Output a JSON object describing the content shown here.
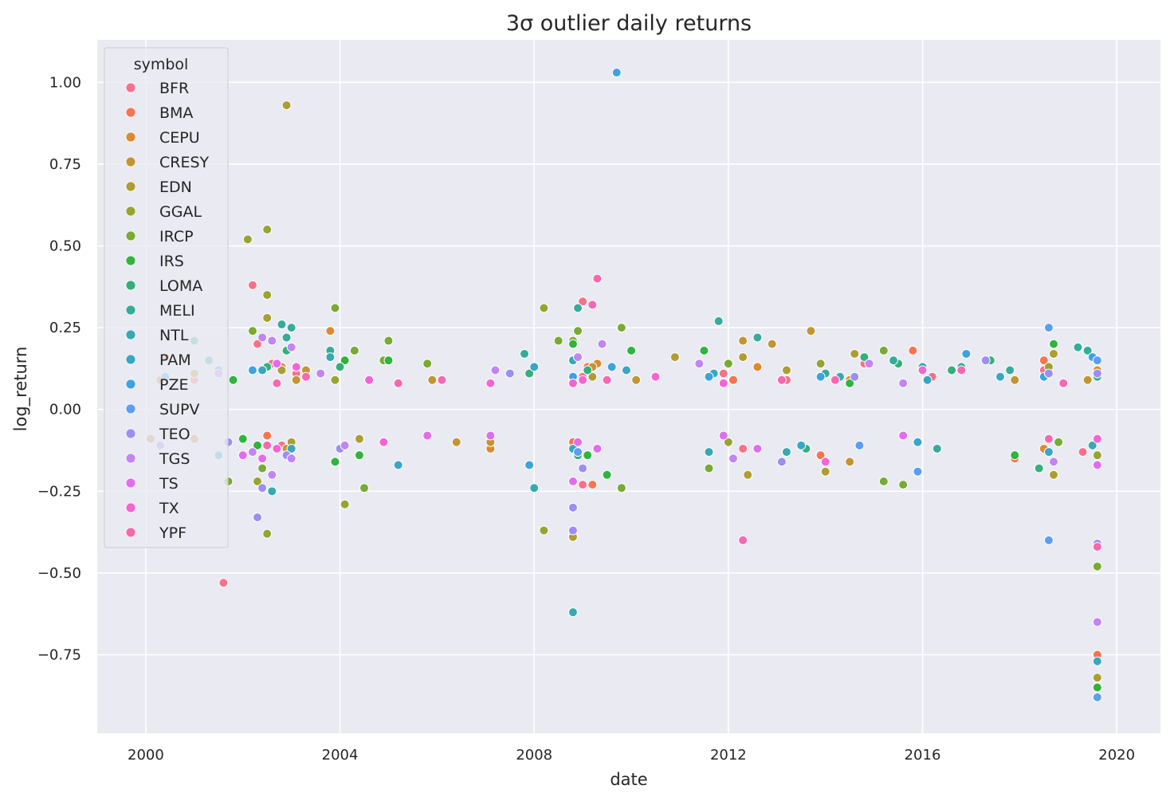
{
  "chart_data": {
    "type": "scatter",
    "title": "3σ outlier daily returns",
    "xlabel": "date",
    "ylabel": "log_return",
    "xlim": [
      1999.0,
      2020.9
    ],
    "ylim": [
      -0.99,
      1.13
    ],
    "x_ticks": [
      2000,
      2004,
      2008,
      2012,
      2016,
      2020
    ],
    "x_tick_labels": [
      "2000",
      "2004",
      "2008",
      "2012",
      "2016",
      "2020"
    ],
    "y_ticks": [
      -0.75,
      -0.5,
      -0.25,
      0.0,
      0.25,
      0.5,
      0.75,
      1.0
    ],
    "y_tick_labels": [
      "−0.75",
      "−0.50",
      "−0.25",
      "0.00",
      "0.25",
      "0.50",
      "0.75",
      "1.00"
    ],
    "grid": true,
    "legend": {
      "title": "symbol",
      "placement": "top-left"
    },
    "series": [
      {
        "name": "BFR",
        "color": "#f77189",
        "points": [
          [
            2001.6,
            -0.53
          ],
          [
            2002.2,
            0.38
          ],
          [
            2002.3,
            0.2
          ],
          [
            2002.6,
            0.14
          ],
          [
            2002.8,
            -0.11
          ],
          [
            2003.1,
            0.11
          ],
          [
            2009.0,
            0.33
          ],
          [
            2009.0,
            0.1
          ],
          [
            2009.0,
            -0.23
          ],
          [
            2011.9,
            0.11
          ],
          [
            2012.3,
            -0.12
          ],
          [
            2013.2,
            0.09
          ],
          [
            2014.8,
            0.14
          ],
          [
            2016.2,
            0.1
          ],
          [
            2018.5,
            0.12
          ],
          [
            2019.3,
            -0.13
          ]
        ]
      },
      {
        "name": "BMA",
        "color": "#f7754f",
        "points": [
          [
            2001.0,
            0.09
          ],
          [
            2002.5,
            -0.08
          ],
          [
            2008.8,
            -0.1
          ],
          [
            2009.1,
            0.13
          ],
          [
            2009.2,
            -0.23
          ],
          [
            2012.1,
            0.09
          ],
          [
            2013.9,
            -0.14
          ],
          [
            2015.8,
            0.18
          ],
          [
            2017.9,
            -0.15
          ],
          [
            2018.5,
            0.15
          ],
          [
            2019.6,
            -0.75
          ]
        ]
      },
      {
        "name": "CEPU",
        "color": "#dc8932",
        "points": [
          [
            2000.4,
            0.16
          ],
          [
            2001.0,
            -0.09
          ],
          [
            2002.8,
            0.13
          ],
          [
            2003.8,
            0.24
          ],
          [
            2007.1,
            -0.12
          ],
          [
            2008.8,
            -0.38
          ],
          [
            2009.3,
            0.14
          ],
          [
            2012.6,
            0.13
          ],
          [
            2014.5,
            0.09
          ],
          [
            2018.5,
            -0.12
          ],
          [
            2019.6,
            0.12
          ]
        ]
      },
      {
        "name": "CRESY",
        "color": "#c39532",
        "points": [
          [
            2000.1,
            -0.09
          ],
          [
            2000.3,
            0.09
          ],
          [
            2001.0,
            0.11
          ],
          [
            2002.9,
            -0.12
          ],
          [
            2003.1,
            0.09
          ],
          [
            2003.3,
            0.12
          ],
          [
            2003.9,
            0.09
          ],
          [
            2005.9,
            0.09
          ],
          [
            2006.4,
            -0.1
          ],
          [
            2007.1,
            -0.1
          ],
          [
            2009.2,
            0.13
          ],
          [
            2010.1,
            0.09
          ],
          [
            2012.3,
            0.21
          ],
          [
            2012.9,
            0.2
          ],
          [
            2013.7,
            0.24
          ],
          [
            2014.5,
            -0.16
          ],
          [
            2017.9,
            0.09
          ],
          [
            2019.4,
            0.09
          ]
        ]
      },
      {
        "name": "EDN",
        "color": "#ae9d31",
        "points": [
          [
            2002.9,
            0.93
          ],
          [
            2002.5,
            0.28
          ],
          [
            2002.8,
            0.12
          ],
          [
            2003.0,
            -0.1
          ],
          [
            2004.4,
            -0.09
          ],
          [
            2008.8,
            -0.39
          ],
          [
            2008.8,
            0.09
          ],
          [
            2009.2,
            0.1
          ],
          [
            2010.9,
            0.16
          ],
          [
            2012.3,
            0.16
          ],
          [
            2012.4,
            -0.2
          ],
          [
            2013.2,
            0.12
          ],
          [
            2014.0,
            -0.19
          ],
          [
            2014.6,
            0.17
          ],
          [
            2018.7,
            0.17
          ],
          [
            2018.7,
            -0.2
          ],
          [
            2019.6,
            -0.82
          ]
        ]
      },
      {
        "name": "GGAL",
        "color": "#97a431",
        "points": [
          [
            2002.1,
            0.52
          ],
          [
            2002.5,
            0.55
          ],
          [
            2002.5,
            0.35
          ],
          [
            2002.3,
            -0.22
          ],
          [
            2002.5,
            -0.38
          ],
          [
            2003.9,
            0.09
          ],
          [
            2004.1,
            -0.29
          ],
          [
            2008.2,
            0.31
          ],
          [
            2008.2,
            -0.37
          ],
          [
            2008.8,
            -0.3
          ],
          [
            2008.8,
            0.21
          ],
          [
            2012.0,
            -0.1
          ],
          [
            2013.9,
            0.14
          ],
          [
            2018.6,
            0.13
          ],
          [
            2019.6,
            -0.14
          ]
        ]
      },
      {
        "name": "IRCP",
        "color": "#77ab31",
        "points": [
          [
            2001.7,
            -0.22
          ],
          [
            2002.2,
            0.24
          ],
          [
            2002.4,
            -0.18
          ],
          [
            2003.9,
            0.31
          ],
          [
            2004.3,
            0.18
          ],
          [
            2004.5,
            -0.24
          ],
          [
            2004.9,
            0.15
          ],
          [
            2005.0,
            0.21
          ],
          [
            2005.8,
            0.14
          ],
          [
            2008.5,
            0.21
          ],
          [
            2008.9,
            0.24
          ],
          [
            2009.8,
            0.25
          ],
          [
            2009.8,
            -0.24
          ],
          [
            2011.6,
            -0.18
          ],
          [
            2012.0,
            0.14
          ],
          [
            2015.2,
            0.18
          ],
          [
            2015.2,
            -0.22
          ],
          [
            2015.6,
            -0.23
          ],
          [
            2018.8,
            -0.1
          ],
          [
            2019.6,
            -0.48
          ]
        ]
      },
      {
        "name": "IRS",
        "color": "#31b33e",
        "points": [
          [
            2001.8,
            0.09
          ],
          [
            2002.0,
            -0.09
          ],
          [
            2002.3,
            -0.11
          ],
          [
            2003.9,
            -0.16
          ],
          [
            2004.1,
            0.15
          ],
          [
            2004.4,
            -0.14
          ],
          [
            2005.0,
            0.15
          ],
          [
            2008.8,
            0.2
          ],
          [
            2009.1,
            -0.14
          ],
          [
            2009.5,
            -0.2
          ],
          [
            2010.0,
            0.18
          ],
          [
            2011.5,
            0.18
          ],
          [
            2014.5,
            0.08
          ],
          [
            2017.9,
            -0.14
          ],
          [
            2018.7,
            0.2
          ],
          [
            2019.6,
            -0.85
          ]
        ]
      },
      {
        "name": "LOMA",
        "color": "#33b07a",
        "points": [
          [
            2002.5,
            0.13
          ],
          [
            2002.9,
            0.18
          ],
          [
            2003.1,
            0.13
          ],
          [
            2004.0,
            0.13
          ],
          [
            2007.9,
            0.11
          ],
          [
            2008.8,
            0.15
          ],
          [
            2008.9,
            -0.14
          ],
          [
            2009.1,
            0.12
          ],
          [
            2013.6,
            -0.12
          ],
          [
            2014.8,
            0.16
          ],
          [
            2015.5,
            0.14
          ],
          [
            2016.6,
            0.12
          ],
          [
            2017.4,
            0.15
          ],
          [
            2018.4,
            -0.18
          ],
          [
            2019.6,
            0.1
          ]
        ]
      },
      {
        "name": "MELI",
        "color": "#35ac9a",
        "points": [
          [
            2002.8,
            0.26
          ],
          [
            2002.9,
            0.22
          ],
          [
            2003.0,
            0.25
          ],
          [
            2003.8,
            0.18
          ],
          [
            2007.8,
            0.17
          ],
          [
            2008.9,
            0.31
          ],
          [
            2011.8,
            0.27
          ],
          [
            2012.6,
            0.22
          ],
          [
            2014.0,
            0.11
          ],
          [
            2015.4,
            0.15
          ],
          [
            2016.3,
            -0.12
          ],
          [
            2016.8,
            0.13
          ],
          [
            2017.8,
            0.12
          ],
          [
            2019.2,
            0.19
          ],
          [
            2019.4,
            0.18
          ]
        ]
      },
      {
        "name": "NTL",
        "color": "#36a9b1",
        "points": [
          [
            2001.0,
            0.21
          ],
          [
            2001.3,
            0.15
          ],
          [
            2002.5,
            -0.11
          ],
          [
            2002.6,
            -0.25
          ],
          [
            2003.8,
            0.16
          ],
          [
            2008.0,
            -0.24
          ],
          [
            2008.8,
            -0.62
          ],
          [
            2008.8,
            0.15
          ],
          [
            2011.6,
            -0.13
          ],
          [
            2013.2,
            -0.13
          ],
          [
            2014.3,
            0.1
          ],
          [
            2016.0,
            0.13
          ],
          [
            2019.5,
            -0.11
          ]
        ]
      },
      {
        "name": "PAM",
        "color": "#38a6c5",
        "points": [
          [
            2001.5,
            0.12
          ],
          [
            2001.5,
            -0.14
          ],
          [
            2002.4,
            0.12
          ],
          [
            2003.0,
            -0.12
          ],
          [
            2005.2,
            -0.17
          ],
          [
            2008.0,
            0.13
          ],
          [
            2008.8,
            -0.12
          ],
          [
            2009.9,
            0.12
          ],
          [
            2011.7,
            0.11
          ],
          [
            2013.5,
            -0.11
          ],
          [
            2015.9,
            -0.1
          ],
          [
            2016.1,
            0.09
          ],
          [
            2017.6,
            0.1
          ],
          [
            2018.6,
            -0.13
          ],
          [
            2019.6,
            -0.77
          ]
        ]
      },
      {
        "name": "PZE",
        "color": "#3ba3e2",
        "points": [
          [
            2000.4,
            0.1
          ],
          [
            2002.2,
            0.12
          ],
          [
            2002.7,
            -0.12
          ],
          [
            2007.9,
            -0.17
          ],
          [
            2008.8,
            0.1
          ],
          [
            2009.7,
            1.03
          ],
          [
            2009.6,
            0.13
          ],
          [
            2011.6,
            0.1
          ],
          [
            2013.9,
            0.1
          ],
          [
            2016.9,
            0.17
          ],
          [
            2018.5,
            0.1
          ],
          [
            2019.5,
            0.16
          ]
        ]
      },
      {
        "name": "SUPV",
        "color": "#5b9ef4",
        "points": [
          [
            2008.9,
            -0.13
          ],
          [
            2014.7,
            -0.11
          ],
          [
            2015.9,
            -0.19
          ],
          [
            2018.6,
            0.25
          ],
          [
            2018.6,
            -0.4
          ],
          [
            2019.6,
            0.15
          ],
          [
            2019.6,
            -0.88
          ]
        ]
      },
      {
        "name": "TEO",
        "color": "#9b8ef4",
        "points": [
          [
            2000.3,
            -0.11
          ],
          [
            2001.7,
            -0.1
          ],
          [
            2002.3,
            -0.33
          ],
          [
            2002.4,
            -0.24
          ],
          [
            2002.9,
            -0.14
          ],
          [
            2004.0,
            -0.12
          ],
          [
            2007.5,
            0.11
          ],
          [
            2008.8,
            -0.37
          ],
          [
            2008.8,
            -0.3
          ],
          [
            2009.0,
            -0.18
          ],
          [
            2013.1,
            -0.16
          ],
          [
            2014.6,
            0.1
          ],
          [
            2017.3,
            0.15
          ],
          [
            2018.6,
            0.11
          ],
          [
            2019.6,
            0.11
          ],
          [
            2019.6,
            -0.41
          ]
        ]
      },
      {
        "name": "TGS",
        "color": "#c185f4",
        "points": [
          [
            2001.5,
            0.11
          ],
          [
            2002.2,
            -0.13
          ],
          [
            2002.4,
            0.22
          ],
          [
            2002.6,
            0.21
          ],
          [
            2002.6,
            -0.2
          ],
          [
            2003.0,
            0.19
          ],
          [
            2003.0,
            -0.15
          ],
          [
            2003.6,
            0.11
          ],
          [
            2004.1,
            -0.11
          ],
          [
            2007.2,
            0.12
          ],
          [
            2008.9,
            0.16
          ],
          [
            2009.4,
            0.2
          ],
          [
            2011.4,
            0.14
          ],
          [
            2012.1,
            -0.15
          ],
          [
            2014.9,
            0.14
          ],
          [
            2015.6,
            0.08
          ],
          [
            2018.7,
            -0.16
          ],
          [
            2019.6,
            -0.65
          ]
        ]
      },
      {
        "name": "TS",
        "color": "#e16dee",
        "points": [
          [
            2002.0,
            -0.14
          ],
          [
            2002.4,
            -0.15
          ],
          [
            2002.7,
            0.14
          ],
          [
            2005.8,
            -0.08
          ],
          [
            2007.1,
            -0.08
          ],
          [
            2008.8,
            -0.22
          ],
          [
            2008.9,
            -0.1
          ],
          [
            2009.3,
            -0.12
          ],
          [
            2011.9,
            -0.08
          ],
          [
            2012.6,
            -0.12
          ],
          [
            2015.6,
            -0.08
          ],
          [
            2019.6,
            -0.17
          ]
        ]
      },
      {
        "name": "TX",
        "color": "#f564d2",
        "points": [
          [
            2002.7,
            -0.12
          ],
          [
            2003.1,
            0.13
          ],
          [
            2004.6,
            0.09
          ],
          [
            2004.9,
            -0.1
          ],
          [
            2007.1,
            0.08
          ],
          [
            2008.8,
            0.08
          ],
          [
            2009.0,
            0.09
          ],
          [
            2010.5,
            0.1
          ],
          [
            2011.9,
            0.08
          ],
          [
            2014.0,
            -0.16
          ],
          [
            2016.0,
            0.12
          ],
          [
            2019.6,
            -0.09
          ]
        ]
      },
      {
        "name": "YPF",
        "color": "#f668b0",
        "points": [
          [
            2002.5,
            -0.11
          ],
          [
            2002.7,
            0.08
          ],
          [
            2003.3,
            0.1
          ],
          [
            2005.2,
            0.08
          ],
          [
            2006.1,
            0.09
          ],
          [
            2009.3,
            0.4
          ],
          [
            2009.2,
            0.32
          ],
          [
            2009.5,
            0.09
          ],
          [
            2012.3,
            -0.4
          ],
          [
            2013.1,
            0.09
          ],
          [
            2014.2,
            0.09
          ],
          [
            2016.8,
            0.12
          ],
          [
            2018.6,
            -0.09
          ],
          [
            2018.9,
            0.08
          ],
          [
            2019.6,
            -0.42
          ]
        ]
      }
    ]
  }
}
